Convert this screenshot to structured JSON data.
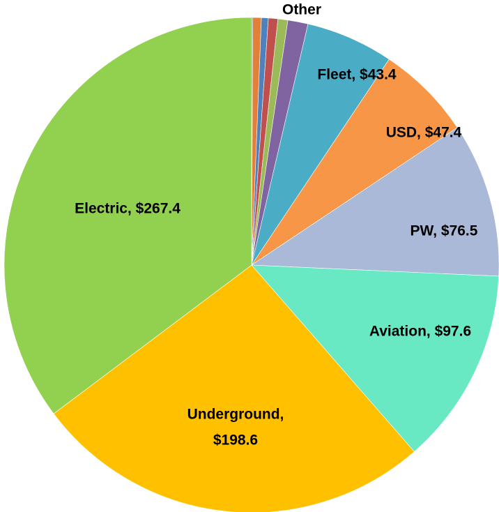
{
  "chart_data": {
    "type": "pie",
    "annotation": "Other",
    "values": [
      0.6,
      4.2,
      3.4,
      4.7,
      4.9,
      10.0,
      43.4,
      47.4,
      76.5,
      97.6,
      198.6,
      267.4
    ],
    "value_labels": [
      null,
      null,
      null,
      null,
      null,
      null,
      "Fleet, $43.4",
      "USD, $47.4",
      "PW, $76.5",
      "Aviation, $97.6",
      [
        "Underground,",
        "$198.6"
      ],
      "Electric, $267.4"
    ],
    "colors": [
      "#7f7f7f",
      "#e2803a",
      "#4f81bd",
      "#c0504d",
      "#9bbb59",
      "#8064a2",
      "#4bacc6",
      "#f79646",
      "#a9b9d7",
      "#69e8c4",
      "#ffc000",
      "#92d050"
    ]
  }
}
